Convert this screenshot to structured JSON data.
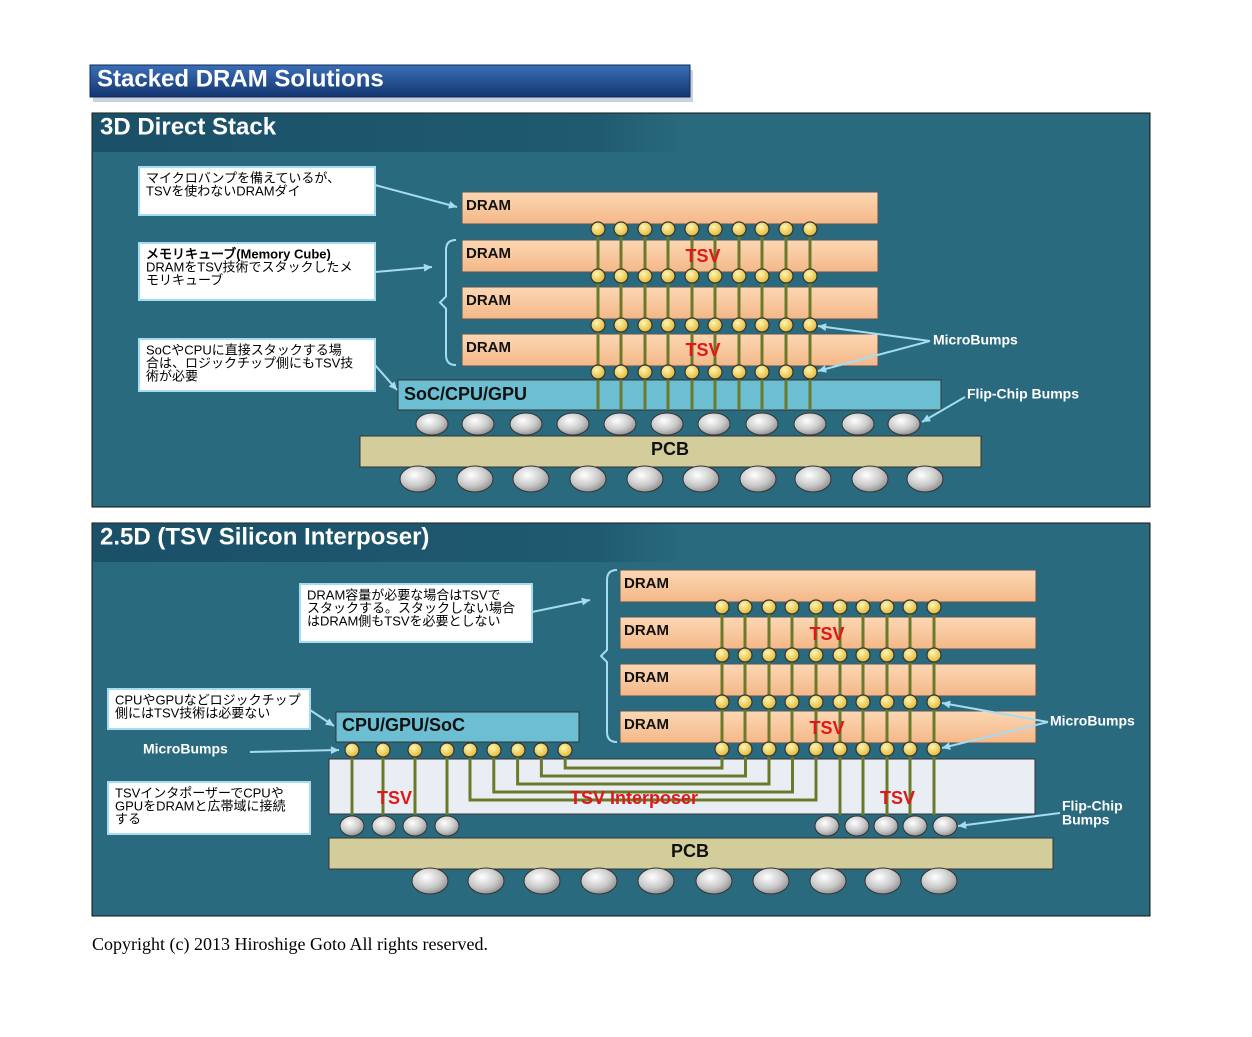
{
  "title": "Stacked DRAM Solutions",
  "panel_3d": {
    "title": "3D Direct Stack",
    "notes": [
      [
        "マイクロバンプを備えているが、",
        "TSVを使わないDRAMダイ"
      ],
      [
        "メモリキューブ(Memory Cube)",
        "DRAMをTSV技術でスタックしたメ",
        "モリキューブ"
      ],
      [
        "SoCやCPUに直接スタックする場",
        "合は、ロジックチップ側にもTSV技",
        "術が必要"
      ]
    ],
    "drams": [
      "DRAM",
      "DRAM",
      "DRAM",
      "DRAM"
    ],
    "tsv": [
      "TSV",
      "TSV"
    ],
    "logic": "SoC/CPU/GPU",
    "pcb": "PCB",
    "microbumps": "MicroBumps",
    "flipchip": "Flip-Chip Bumps"
  },
  "panel_25d": {
    "title": "2.5D (TSV Silicon Interposer)",
    "notes": [
      [
        "DRAM容量が必要な場合はTSVで",
        "スタックする。スタックしない場合",
        "はDRAM側もTSVを必要としない"
      ],
      [
        "CPUやGPUなどロジックチップ",
        "側にはTSV技術は必要ない"
      ],
      [
        "TSVインタポーザーでCPUや",
        "GPUをDRAMと広帯域に接続",
        "する"
      ]
    ],
    "drams": [
      "DRAM",
      "DRAM",
      "DRAM",
      "DRAM"
    ],
    "dram_tsv": [
      "TSV",
      "TSV"
    ],
    "logic": "CPU/GPU/SoC",
    "microbumps_left": "MicroBumps",
    "microbumps_right": "MicroBumps",
    "interposer_tsv": [
      "TSV",
      "TSV"
    ],
    "interposer": "TSV Interposer",
    "flipchip": [
      "Flip-Chip",
      "Bumps"
    ],
    "pcb": "PCB"
  },
  "copyright": "Copyright (c) 2013 Hiroshige Goto All rights reserved."
}
